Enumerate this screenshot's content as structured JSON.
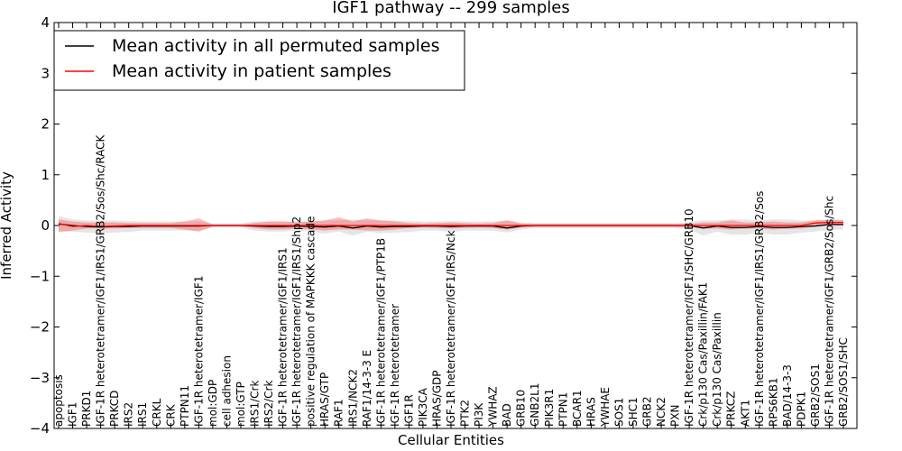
{
  "chart_data": {
    "type": "line",
    "title": "IGF1 pathway -- 299 samples",
    "xlabel": "Cellular Entities",
    "ylabel": "Inferred Activity",
    "ylim": [
      -4,
      4
    ],
    "yticks": [
      4,
      3,
      2,
      1,
      0,
      -1,
      -2,
      -3,
      -4
    ],
    "ytick_labels": [
      "4",
      "3",
      "2",
      "1",
      "0",
      "−1",
      "−2",
      "−3",
      "−4"
    ],
    "grid": false,
    "legend_position": "top-left",
    "categories": [
      "apoptosis",
      "IGF1",
      "PRKD1",
      "IGF-1R heterotetramer/IGF1/IRS1/GRB2/Sos/Shc/RACK",
      "PRKCD",
      "IRS2",
      "IRS1",
      "CRKL",
      "CRK",
      "PTPN11",
      "IGF-1R heterotetramer/IGF1",
      "mol:GDP",
      "cell adhesion",
      "mol:GTP",
      "IRS1/Crk",
      "IRS2/Crk",
      "IGF-1R heterotetramer/IGF1/IRS1",
      "IGF-1R heterotetramer/IGF1/IRS1/Shp2",
      "positive regulation of MAPKKK cascade",
      "HRAS/GTP",
      "RAF1",
      "IRS1/NCK2",
      "RAF1/14-3-3 E",
      "IGF-1R heterotetramer/IGF1/PTP1B",
      "IGF-1R heterotetramer",
      "IGF1R",
      "PIK3CA",
      "HRAS/GDP",
      "IGF-1R heterotetramer/IGF1/IRS/Nck",
      "PTK2",
      "PI3K",
      "YWHAZ",
      "BAD",
      "GRB10",
      "GNB2L1",
      "PIK3R1",
      "PTPN1",
      "BCAR1",
      "HRAS",
      "YWHAE",
      "SOS1",
      "SHC1",
      "GRB2",
      "NCK2",
      "PXN",
      "IGF-1R heterotetramer/IGF1/SHC/GRB10",
      "Crk/p130 Cas/Paxillin/FAK1",
      "Crk/p130 Cas/Paxillin",
      "PRKCZ",
      "AKT1",
      "IGF-1R heterotetramer/IGF1/IRS1/GRB2/Sos",
      "RPS6KB1",
      "BAD/14-3-3",
      "PDPK1",
      "GRB2/SOS1",
      "IGF-1R heterotetramer/IGF1/GRB2/Sos/Shc",
      "GRB2/SOS1/SHC"
    ],
    "series": [
      {
        "name": "Mean activity in all permuted samples",
        "color": "#000000",
        "values": [
          0.03,
          0.0,
          -0.02,
          -0.03,
          -0.02,
          -0.02,
          -0.01,
          -0.01,
          -0.01,
          -0.01,
          -0.01,
          0.0,
          0.0,
          0.0,
          -0.01,
          -0.02,
          -0.02,
          -0.01,
          -0.02,
          -0.03,
          -0.01,
          -0.05,
          -0.01,
          -0.03,
          -0.02,
          -0.02,
          -0.01,
          -0.01,
          -0.02,
          -0.01,
          -0.01,
          -0.01,
          -0.05,
          -0.01,
          0.0,
          0.0,
          0.0,
          0.0,
          0.0,
          0.0,
          0.0,
          0.0,
          0.0,
          0.0,
          0.0,
          0.0,
          -0.05,
          -0.01,
          -0.04,
          -0.04,
          -0.02,
          -0.04,
          -0.04,
          -0.02,
          -0.01,
          0.02,
          0.02
        ],
        "band_upper": [
          0.19,
          0.12,
          0.1,
          0.1,
          0.1,
          0.09,
          0.08,
          0.08,
          0.08,
          0.08,
          0.08,
          0.04,
          0.04,
          0.04,
          0.08,
          0.08,
          0.08,
          0.08,
          0.08,
          0.1,
          0.1,
          0.12,
          0.1,
          0.1,
          0.1,
          0.09,
          0.08,
          0.08,
          0.09,
          0.08,
          0.08,
          0.08,
          0.1,
          0.06,
          0.05,
          0.05,
          0.05,
          0.05,
          0.05,
          0.05,
          0.05,
          0.05,
          0.05,
          0.05,
          0.05,
          0.07,
          0.1,
          0.1,
          0.12,
          0.12,
          0.1,
          0.12,
          0.12,
          0.1,
          0.1,
          0.12,
          0.12
        ],
        "band_lower": [
          -0.13,
          -0.12,
          -0.14,
          -0.15,
          -0.14,
          -0.13,
          -0.1,
          -0.1,
          -0.1,
          -0.1,
          -0.1,
          -0.04,
          -0.04,
          -0.04,
          -0.1,
          -0.12,
          -0.12,
          -0.1,
          -0.12,
          -0.16,
          -0.12,
          -0.2,
          -0.12,
          -0.15,
          -0.14,
          -0.13,
          -0.1,
          -0.1,
          -0.13,
          -0.1,
          -0.1,
          -0.1,
          -0.14,
          -0.08,
          -0.05,
          -0.05,
          -0.05,
          -0.05,
          -0.05,
          -0.05,
          -0.05,
          -0.05,
          -0.05,
          -0.05,
          -0.05,
          -0.08,
          -0.2,
          -0.12,
          -0.18,
          -0.18,
          -0.14,
          -0.18,
          -0.18,
          -0.14,
          -0.12,
          -0.08,
          -0.08
        ]
      },
      {
        "name": "Mean activity in patient samples",
        "color": "#ff0000",
        "values": [
          0.04,
          -0.02,
          0.0,
          -0.02,
          -0.01,
          0.0,
          0.0,
          0.0,
          0.0,
          0.0,
          0.0,
          0.0,
          0.0,
          0.0,
          0.0,
          0.0,
          0.0,
          0.0,
          0.0,
          0.0,
          0.0,
          0.0,
          0.0,
          0.0,
          0.0,
          0.0,
          0.0,
          0.0,
          0.0,
          0.0,
          0.0,
          0.0,
          0.0,
          0.0,
          0.0,
          0.0,
          0.0,
          0.0,
          0.0,
          0.0,
          0.0,
          0.0,
          0.0,
          0.0,
          0.0,
          0.0,
          0.0,
          0.0,
          0.0,
          0.0,
          0.0,
          0.0,
          0.0,
          0.0,
          0.05,
          0.06,
          0.06
        ],
        "band_upper": [
          0.12,
          0.08,
          0.06,
          0.06,
          0.06,
          0.05,
          0.05,
          0.05,
          0.05,
          0.08,
          0.14,
          0.02,
          0.02,
          0.02,
          0.05,
          0.08,
          0.08,
          0.06,
          0.08,
          0.1,
          0.16,
          0.08,
          0.14,
          0.1,
          0.08,
          0.05,
          0.04,
          0.05,
          0.06,
          0.05,
          0.04,
          0.05,
          0.1,
          0.04,
          0.03,
          0.03,
          0.03,
          0.03,
          0.03,
          0.03,
          0.03,
          0.03,
          0.03,
          0.03,
          0.03,
          0.03,
          0.06,
          0.06,
          0.1,
          0.06,
          0.06,
          0.08,
          0.06,
          0.06,
          0.1,
          0.11,
          0.1
        ],
        "band_lower": [
          -0.12,
          -0.1,
          -0.06,
          -0.06,
          -0.06,
          -0.05,
          -0.05,
          -0.05,
          -0.05,
          -0.08,
          -0.12,
          -0.02,
          -0.02,
          -0.02,
          -0.05,
          -0.08,
          -0.08,
          -0.06,
          -0.08,
          -0.1,
          -0.08,
          -0.08,
          -0.1,
          -0.1,
          -0.08,
          -0.05,
          -0.04,
          -0.05,
          -0.06,
          -0.05,
          -0.04,
          -0.05,
          -0.08,
          -0.04,
          -0.03,
          -0.03,
          -0.03,
          -0.03,
          -0.03,
          -0.03,
          -0.03,
          -0.03,
          -0.03,
          -0.03,
          -0.03,
          -0.03,
          -0.06,
          -0.06,
          -0.08,
          -0.06,
          -0.06,
          -0.08,
          -0.06,
          -0.06,
          -0.02,
          0.0,
          0.0
        ]
      }
    ]
  }
}
